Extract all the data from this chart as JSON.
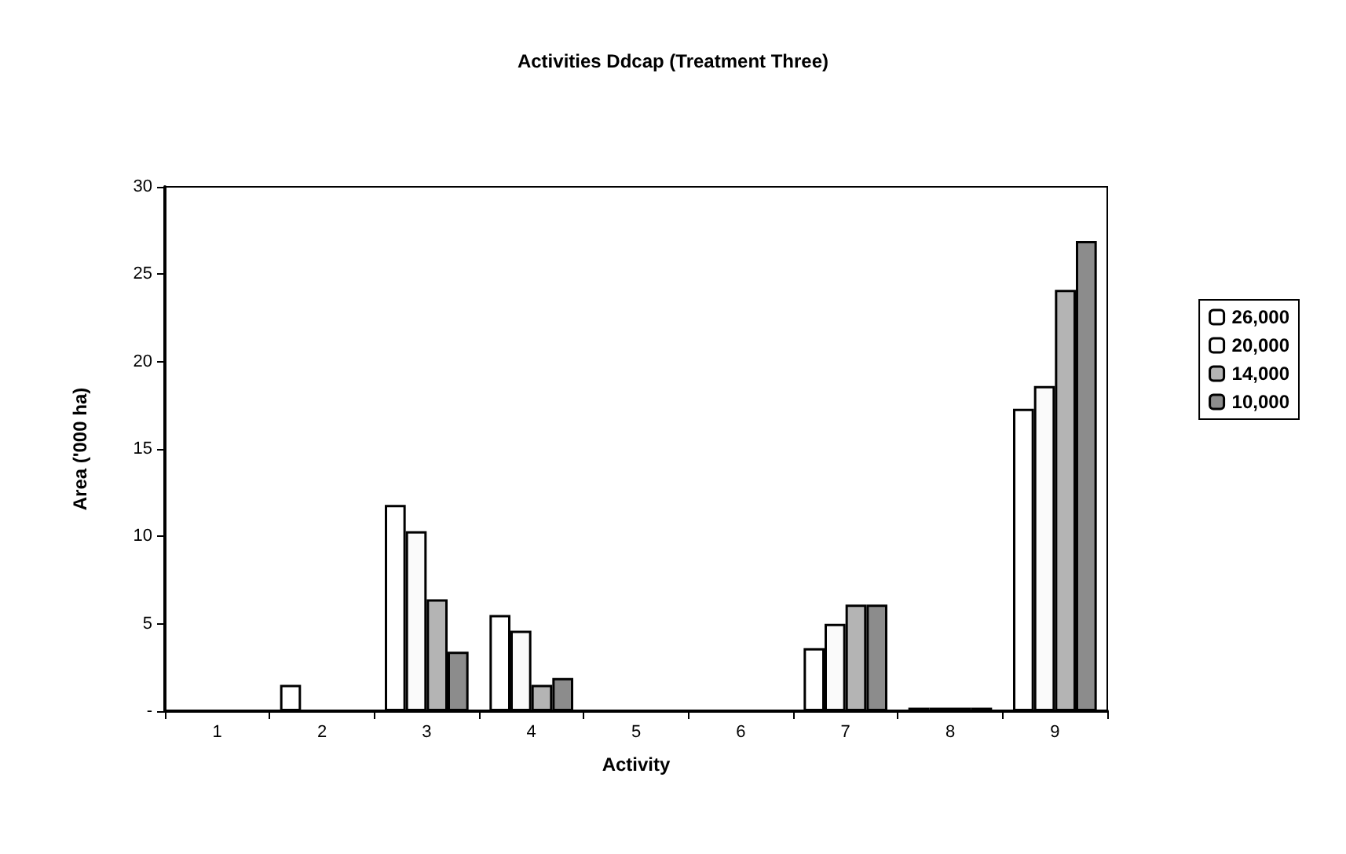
{
  "chart_data": {
    "type": "bar",
    "title": "Activities Ddcap (Treatment Three)",
    "xlabel": "Activity",
    "ylabel": "Area ('000 ha)",
    "categories": [
      "1",
      "2",
      "3",
      "4",
      "5",
      "6",
      "7",
      "8",
      "9"
    ],
    "series": [
      {
        "name": "26,000",
        "color": "#ffffff",
        "values": [
          0,
          1.5,
          11.8,
          5.5,
          0,
          0,
          3.6,
          0.2,
          17.3
        ]
      },
      {
        "name": "20,000",
        "color": "#fafafa",
        "values": [
          0,
          0,
          10.3,
          4.6,
          0,
          0,
          5,
          0.2,
          18.6
        ]
      },
      {
        "name": "14,000",
        "color": "#b4b4b4",
        "values": [
          0,
          0,
          6.4,
          1.5,
          0,
          0,
          6.1,
          0.2,
          24.1
        ]
      },
      {
        "name": "10,000",
        "color": "#8c8c8c",
        "values": [
          0,
          0,
          3.4,
          1.9,
          0,
          0,
          6.1,
          0.2,
          26.9
        ]
      }
    ],
    "ylim": [
      0,
      30
    ],
    "yticks": [
      {
        "value": 0,
        "label": "-"
      },
      5,
      10,
      15,
      20,
      25,
      30
    ],
    "grid": false,
    "legend": "right"
  }
}
